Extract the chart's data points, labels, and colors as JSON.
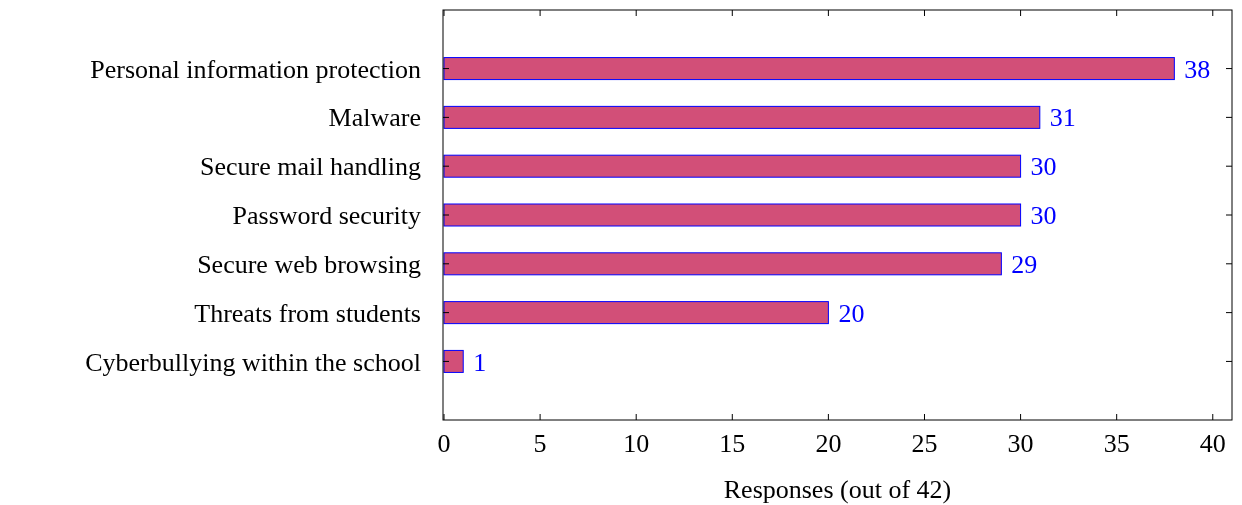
{
  "chart_data": {
    "type": "bar",
    "orientation": "horizontal",
    "xlabel": "Responses (out of 42)",
    "categories": [
      "Personal information protection",
      "Malware",
      "Secure mail handling",
      "Password security",
      "Secure web browsing",
      "Threats from students",
      "Cyberbullying within the school"
    ],
    "values": [
      38,
      31,
      30,
      30,
      29,
      20,
      1
    ],
    "color": "#d24f78",
    "xlim": [
      0,
      41
    ],
    "xticks": [
      0,
      5,
      10,
      15,
      20,
      25,
      30,
      35,
      40
    ],
    "data_labels": true,
    "grid": false
  }
}
